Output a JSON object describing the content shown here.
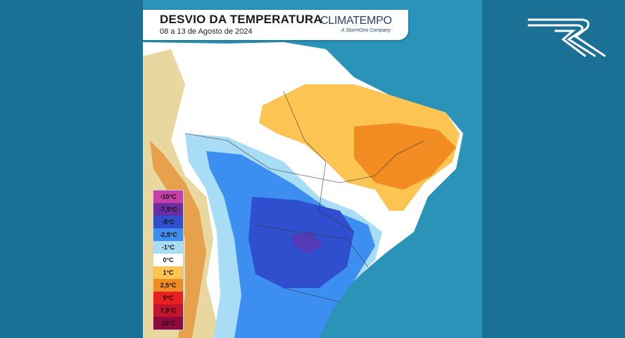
{
  "header": {
    "title": "DESVIO DA TEMPERATURA",
    "subtitle": "08 a 13 de Agosto de 2024",
    "brand": "CLIMATEMPO",
    "brand_tagline": "A StormGeo Company"
  },
  "legend": [
    {
      "label": "-10°C",
      "color": "#c43fa6"
    },
    {
      "label": "-7,5°C",
      "color": "#6b2ea3"
    },
    {
      "label": "-5°C",
      "color": "#2f4fcf"
    },
    {
      "label": "-2,5°C",
      "color": "#3c8ff0"
    },
    {
      "label": "-1°C",
      "color": "#a9dcf5"
    },
    {
      "label": "0°C",
      "color": "#ffffff"
    },
    {
      "label": "1°C",
      "color": "#fbc453"
    },
    {
      "label": "2,5°C",
      "color": "#f28b22"
    },
    {
      "label": "5°C",
      "color": "#e8201f"
    },
    {
      "label": "7,5°C",
      "color": "#c2142c"
    },
    {
      "label": "10°C",
      "color": "#8c0b3b"
    }
  ]
}
